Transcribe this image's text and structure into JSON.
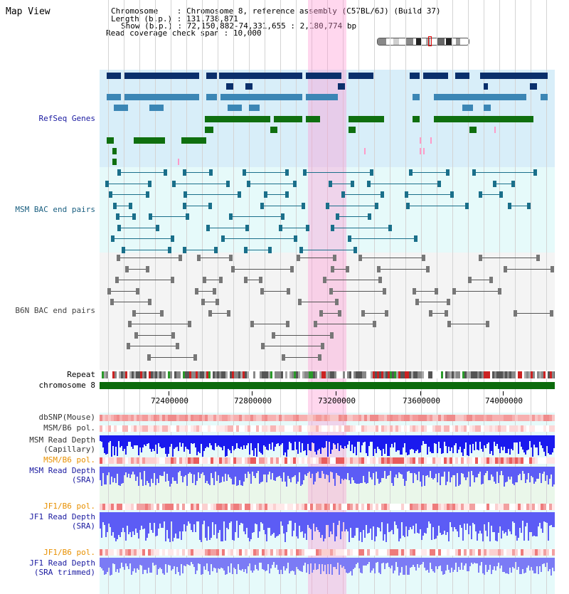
{
  "header": {
    "title": "Map View",
    "chromosome_label": "Chromosome",
    "chromosome_value": "Chromosome 8, reference assembly (C57BL/6J) (Build 37)",
    "length_label": "Length (b.p.)",
    "length_value": "131,738,871",
    "show_label": "Show (b.p.)",
    "show_value": "72,150,882-74,331,655 : 2,180,774 bp",
    "coverage_label": "Read coverage check span",
    "coverage_value": "10,000"
  },
  "tracks": {
    "refseq": "RefSeq Genes",
    "msm_bac": "MSM BAC end pairs",
    "b6n_bac": "B6N BAC end pairs",
    "repeat": "Repeat",
    "chromosome": "chromosome 8",
    "dbsnp": "dbSNP(Mouse)",
    "msm_b6_pol_cap": "MSM/B6 pol.",
    "msm_depth_cap_1": "MSM Read Depth",
    "msm_depth_cap_2": "(Capillary)",
    "msm_b6_pol_sra": "MSM/B6 pol.",
    "msm_depth_sra_1": "MSM Read Depth",
    "msm_depth_sra_2": "(SRA)",
    "jf1_b6_pol": "JF1/B6 pol.",
    "jf1_depth_sra_1": "JF1 Read Depth",
    "jf1_depth_sra_2": "(SRA)",
    "jf1_b6_pol_trim": "JF1/B6 pol.",
    "jf1_depth_trim_1": "JF1 Read Depth",
    "jf1_depth_trim_2": "(SRA trimmed)"
  },
  "axis": {
    "ticks": [
      "72400000",
      "72800000",
      "73200000",
      "73600000",
      "74000000"
    ]
  },
  "colors": {
    "refseq_bg": "#d8eef9",
    "bac_bg": "#e6fafa",
    "b6n_bg": "#f2f2f2",
    "gene_dark": "#0a2f6b",
    "gene_mid": "#3b86b5",
    "gene_green": "#0f6f0f",
    "msm_pair": "#1a6f8a",
    "b6n_pair": "#555555",
    "chromosome_bar": "#0c6b0c",
    "depth_capillary": "#1a1aee",
    "depth_sra": "#5c5cf5",
    "highlight": "#ffc8ea"
  },
  "icons": [
    "ideogram-icon",
    "chromosome-position-marker-icon"
  ]
}
